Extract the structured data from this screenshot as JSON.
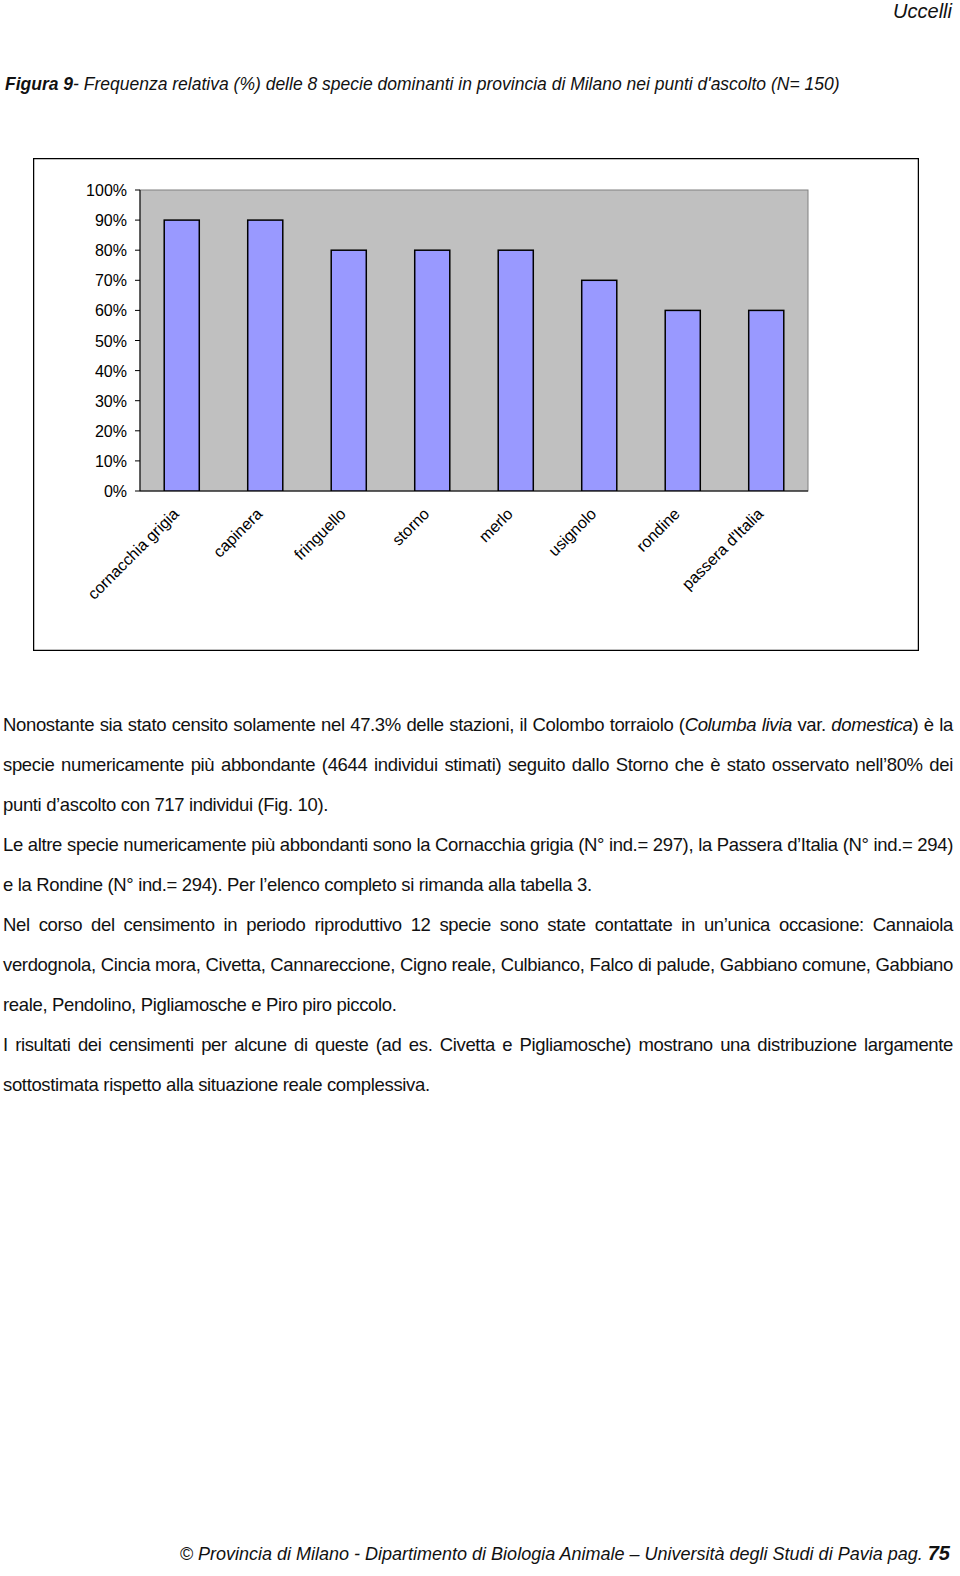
{
  "header": {
    "section": "Uccelli"
  },
  "figure": {
    "label": "Figura 9",
    "caption": "- Frequenza relativa (%) delle 8 specie dominanti in provincia di Milano nei punti d'ascolto (N= 150)"
  },
  "chart_data": {
    "type": "bar",
    "categories": [
      "cornacchia grigia",
      "capinera",
      "fringuello",
      "storno",
      "merlo",
      "usignolo",
      "rondine",
      "passera d'Italia"
    ],
    "values": [
      90,
      90,
      80,
      80,
      80,
      70,
      60,
      60
    ],
    "color": "#9999ff",
    "ylim": [
      0,
      100
    ],
    "yticks": [
      {
        "value": 0,
        "label": "0%"
      },
      {
        "value": 10,
        "label": "10%"
      },
      {
        "value": 20,
        "label": "20%"
      },
      {
        "value": 30,
        "label": "30%"
      },
      {
        "value": 40,
        "label": "40%"
      },
      {
        "value": 50,
        "label": "50%"
      },
      {
        "value": 60,
        "label": "60%"
      },
      {
        "value": 70,
        "label": "70%"
      },
      {
        "value": 80,
        "label": "80%"
      },
      {
        "value": 90,
        "label": "90%"
      },
      {
        "value": 100,
        "label": "100%"
      }
    ],
    "grid": false
  },
  "paragraphs": [
    {
      "runs": [
        {
          "text": "Nonostante sia stato censito solamente nel 47.3% delle stazioni, il Colombo torraiolo ("
        },
        {
          "text": "Columba livia",
          "em": true
        },
        {
          "text": " var. "
        },
        {
          "text": "domestica",
          "em": true
        },
        {
          "text": ") è la specie numericamente più abbondante (4644 individui stimati) seguito dallo Storno che è stato osservato nell’80% dei punti d’ascolto con 717 individui (Fig. 10)."
        }
      ]
    },
    {
      "runs": [
        {
          "text": "Le altre specie numericamente più abbondanti sono la Cornacchia grigia (N° ind.= 297), la Passera d’Italia (N° ind.= 294) e la Rondine (N° ind.= 294). Per l’elenco completo si rimanda alla tabella 3."
        }
      ]
    },
    {
      "runs": [
        {
          "text": "Nel corso del censimento in periodo riproduttivo 12 specie sono state contattate in un’unica occasione: Cannaiola verdognola, Cincia mora, Civetta, Cannareccione, Cigno reale, Culbianco, Falco di palude, Gabbiano comune, Gabbiano reale, Pendolino, Pigliamosche e Piro piro piccolo."
        }
      ]
    },
    {
      "runs": [
        {
          "text": "I risultati dei censimenti per alcune di queste (ad es. Civetta e Pigliamosche) mostrano una distribuzione largamente sottostimata rispetto alla situazione reale complessiva."
        }
      ]
    }
  ],
  "footer": {
    "text": "© Provincia di Milano - Dipartimento di Biologia Animale – Università degli Studi di Pavia",
    "page_label": "pag.",
    "page": 75
  }
}
